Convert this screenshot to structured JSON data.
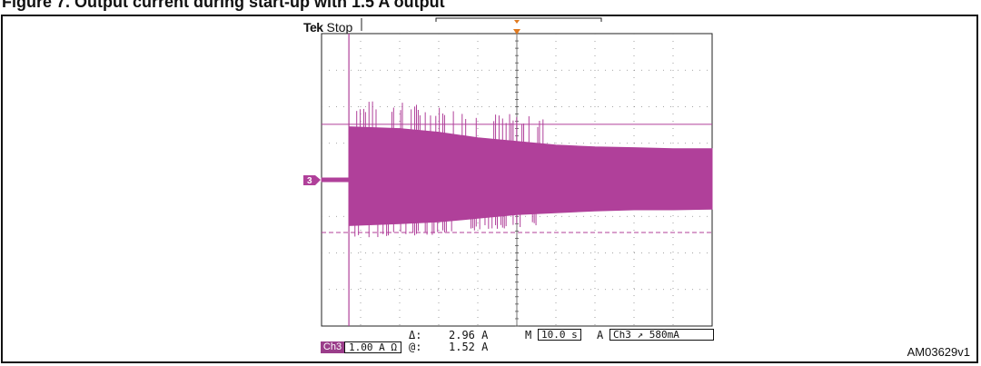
{
  "heading": "Figure 7. Output current during start-up with 1.5 A output",
  "scope": {
    "brand": "Tek",
    "state": "Stop",
    "channel_marker": "3",
    "channel_label": "Ch3",
    "channel_scale": "1.00 A Ω",
    "delta_label": "Δ:",
    "delta_value": "2.96 A",
    "at_label": "@:",
    "at_value": "1.52 A",
    "timebase_prefix": "M",
    "timebase": "10.0 s",
    "trigger_prefix": "A",
    "trigger_source": "Ch3",
    "trigger_slope": "↗",
    "trigger_level": "580mA",
    "trace_color": "#b0409a",
    "reference": "AM03629v1"
  },
  "chart_data": {
    "type": "line",
    "title": "",
    "xlabel": "",
    "ylabel": "",
    "x_units": "s",
    "y_units": "A",
    "x_per_div": 10.0,
    "y_per_div": 1.0,
    "xlim": [
      0,
      100
    ],
    "ylim": [
      -4,
      4
    ],
    "grid": true,
    "cursors": {
      "vertical_time_s": 7.0,
      "horizontal_upper_A": 1.52,
      "horizontal_lower_A": -1.44,
      "delta_A": 2.96
    },
    "series": [
      {
        "envelope_time_s": [
          0,
          7,
          7.01,
          20,
          30,
          40,
          50,
          60,
          70,
          80,
          90,
          100
        ],
        "upper_A": [
          0.05,
          0.05,
          1.45,
          1.4,
          1.3,
          1.15,
          1.05,
          0.95,
          0.9,
          0.88,
          0.85,
          0.85
        ],
        "lower_A": [
          -0.05,
          -0.05,
          -1.25,
          -1.2,
          -1.15,
          -1.05,
          -0.95,
          -0.9,
          -0.85,
          -0.82,
          -0.82,
          -0.8
        ]
      }
    ]
  }
}
